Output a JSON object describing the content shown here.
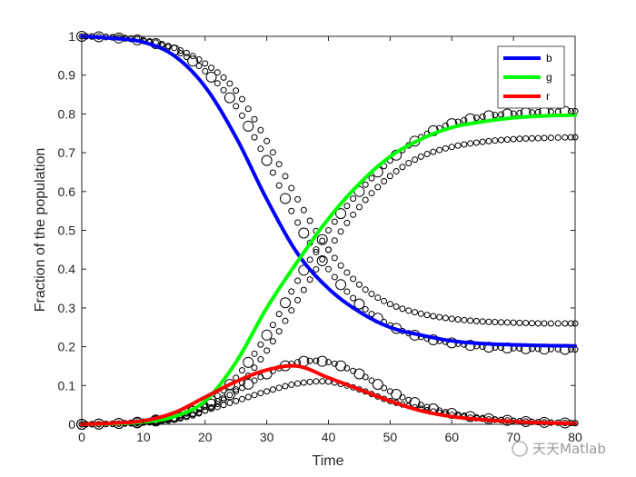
{
  "chart_data": {
    "type": "line",
    "title": "",
    "xlabel": "Time",
    "ylabel": "Fraction of the population",
    "xlim": [
      0,
      80
    ],
    "ylim": [
      0,
      1
    ],
    "xticks": [
      0,
      10,
      20,
      30,
      40,
      50,
      60,
      70,
      80
    ],
    "yticks": [
      0,
      0.1,
      0.2,
      0.3,
      0.4,
      0.5,
      0.6,
      0.7,
      0.8,
      0.9,
      1
    ],
    "xtick_labels": [
      "0",
      "10",
      "20",
      "30",
      "40",
      "50",
      "60",
      "70",
      "80"
    ],
    "ytick_labels": [
      "0",
      "0.1",
      "0.2",
      "0.3",
      "0.4",
      "0.5",
      "0.6",
      "0.7",
      "0.8",
      "0.9",
      "1"
    ],
    "grid": false,
    "legend_position": "top-right",
    "x": [
      0,
      5,
      10,
      15,
      20,
      25,
      30,
      35,
      40,
      45,
      50,
      55,
      60,
      65,
      70,
      75,
      80
    ],
    "series": [
      {
        "name": "b",
        "color": "#0000ff",
        "values": [
          1.0,
          0.995,
          0.985,
          0.95,
          0.87,
          0.74,
          0.58,
          0.44,
          0.35,
          0.29,
          0.25,
          0.23,
          0.215,
          0.208,
          0.205,
          0.203,
          0.202
        ]
      },
      {
        "name": "g",
        "color": "#00ff00",
        "values": [
          0.0,
          0.002,
          0.006,
          0.02,
          0.06,
          0.16,
          0.3,
          0.42,
          0.53,
          0.62,
          0.69,
          0.735,
          0.765,
          0.78,
          0.79,
          0.795,
          0.797
        ]
      },
      {
        "name": "r",
        "color": "#ff0000",
        "values": [
          0.0,
          0.003,
          0.009,
          0.03,
          0.07,
          0.11,
          0.14,
          0.15,
          0.12,
          0.09,
          0.06,
          0.035,
          0.02,
          0.012,
          0.007,
          0.004,
          0.002
        ]
      }
    ],
    "markers": {
      "color": "#000000",
      "groups": [
        {
          "values": [
            1.0,
            0.998,
            0.99,
            0.97,
            0.93,
            0.86,
            0.73,
            0.58,
            0.45,
            0.36,
            0.31,
            0.285,
            0.272,
            0.265,
            0.262,
            0.26,
            0.26
          ]
        },
        {
          "values": [
            0.0,
            0.001,
            0.004,
            0.012,
            0.035,
            0.09,
            0.19,
            0.32,
            0.45,
            0.56,
            0.64,
            0.69,
            0.715,
            0.728,
            0.735,
            0.738,
            0.74
          ]
        },
        {
          "values": [
            0.0,
            0.001,
            0.006,
            0.015,
            0.035,
            0.06,
            0.085,
            0.105,
            0.11,
            0.09,
            0.06,
            0.04,
            0.024,
            0.014,
            0.009,
            0.005,
            0.003
          ]
        },
        {
          "values": [
            1.0,
            0.997,
            0.988,
            0.965,
            0.91,
            0.82,
            0.68,
            0.52,
            0.4,
            0.31,
            0.255,
            0.225,
            0.21,
            0.2,
            0.196,
            0.194,
            0.193
          ]
        },
        {
          "values": [
            0.0,
            0.0015,
            0.005,
            0.018,
            0.05,
            0.12,
            0.23,
            0.37,
            0.5,
            0.6,
            0.68,
            0.74,
            0.775,
            0.793,
            0.801,
            0.805,
            0.807
          ]
        },
        {
          "values": [
            0.0,
            0.0015,
            0.007,
            0.02,
            0.045,
            0.085,
            0.13,
            0.16,
            0.16,
            0.13,
            0.085,
            0.05,
            0.028,
            0.016,
            0.009,
            0.005,
            0.003
          ]
        }
      ]
    }
  },
  "watermark": {
    "text": "天天Matlab"
  }
}
